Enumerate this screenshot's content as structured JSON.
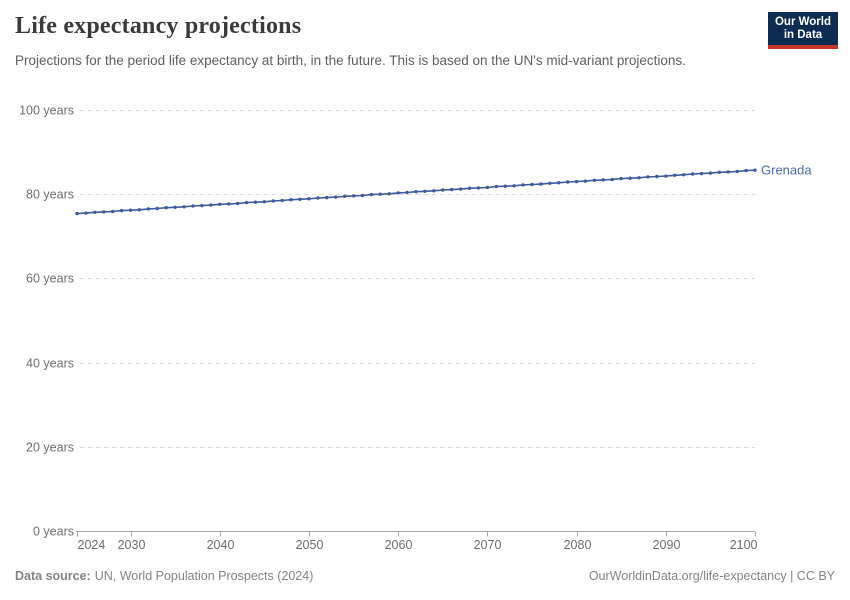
{
  "header": {
    "title": "Life expectancy projections",
    "subtitle": "Projections for the period life expectancy at birth, in the future. This is based on the UN's mid-variant projections."
  },
  "logo": {
    "line1": "Our World",
    "line2": "in Data"
  },
  "chart_data": {
    "type": "line",
    "title": "Life expectancy projections",
    "xlabel": "",
    "ylabel": "years",
    "xlim": [
      2024,
      2100
    ],
    "ylim": [
      0,
      100
    ],
    "grid": "horizontal dashed",
    "legend_position": "end-of-line label",
    "x": [
      2024,
      2025,
      2026,
      2027,
      2028,
      2029,
      2030,
      2031,
      2032,
      2033,
      2034,
      2035,
      2036,
      2037,
      2038,
      2039,
      2040,
      2041,
      2042,
      2043,
      2044,
      2045,
      2046,
      2047,
      2048,
      2049,
      2050,
      2051,
      2052,
      2053,
      2054,
      2055,
      2056,
      2057,
      2058,
      2059,
      2060,
      2061,
      2062,
      2063,
      2064,
      2065,
      2066,
      2067,
      2068,
      2069,
      2070,
      2071,
      2072,
      2073,
      2074,
      2075,
      2076,
      2077,
      2078,
      2079,
      2080,
      2081,
      2082,
      2083,
      2084,
      2085,
      2086,
      2087,
      2088,
      2089,
      2090,
      2091,
      2092,
      2093,
      2094,
      2095,
      2096,
      2097,
      2098,
      2099,
      2100
    ],
    "series": [
      {
        "name": "Grenada",
        "values": [
          75.4,
          75.5,
          75.7,
          75.8,
          75.9,
          76.1,
          76.2,
          76.3,
          76.5,
          76.6,
          76.8,
          76.9,
          77.0,
          77.2,
          77.3,
          77.4,
          77.6,
          77.7,
          77.8,
          78.0,
          78.1,
          78.2,
          78.4,
          78.5,
          78.7,
          78.8,
          78.9,
          79.1,
          79.2,
          79.3,
          79.5,
          79.6,
          79.7,
          79.9,
          80.0,
          80.1,
          80.3,
          80.4,
          80.6,
          80.7,
          80.8,
          81.0,
          81.1,
          81.2,
          81.4,
          81.5,
          81.6,
          81.8,
          81.9,
          82.0,
          82.2,
          82.3,
          82.4,
          82.6,
          82.7,
          82.9,
          83.0,
          83.1,
          83.3,
          83.4,
          83.5,
          83.7,
          83.8,
          83.9,
          84.1,
          84.2,
          84.3,
          84.5,
          84.6,
          84.8,
          84.9,
          85.0,
          85.2,
          85.3,
          85.4,
          85.6,
          85.7
        ]
      }
    ],
    "y_ticks": [
      {
        "value": 0,
        "label": "0 years"
      },
      {
        "value": 20,
        "label": "20 years"
      },
      {
        "value": 40,
        "label": "40 years"
      },
      {
        "value": 60,
        "label": "60 years"
      },
      {
        "value": 80,
        "label": "80 years"
      },
      {
        "value": 100,
        "label": "100 years"
      }
    ],
    "x_ticks": [
      2024,
      2030,
      2040,
      2050,
      2060,
      2070,
      2080,
      2090,
      2100
    ]
  },
  "footer": {
    "source_label": "Data source:",
    "source_text": "UN, World Population Prospects (2024)",
    "link_text": "OurWorldinData.org/life-expectancy | CC BY"
  },
  "colors": {
    "series_line": "#3d5c9c",
    "series_label": "#4a6cae",
    "gridline": "#dcdcdc",
    "axis": "#a8a8a8",
    "tick_text": "#6e6e6e",
    "title_text": "#3b3b3b",
    "subtitle_text": "#5f5f5f",
    "footer_text": "#848484",
    "logo_background": "#0d2c51",
    "logo_accent_red": "#c7342a"
  }
}
